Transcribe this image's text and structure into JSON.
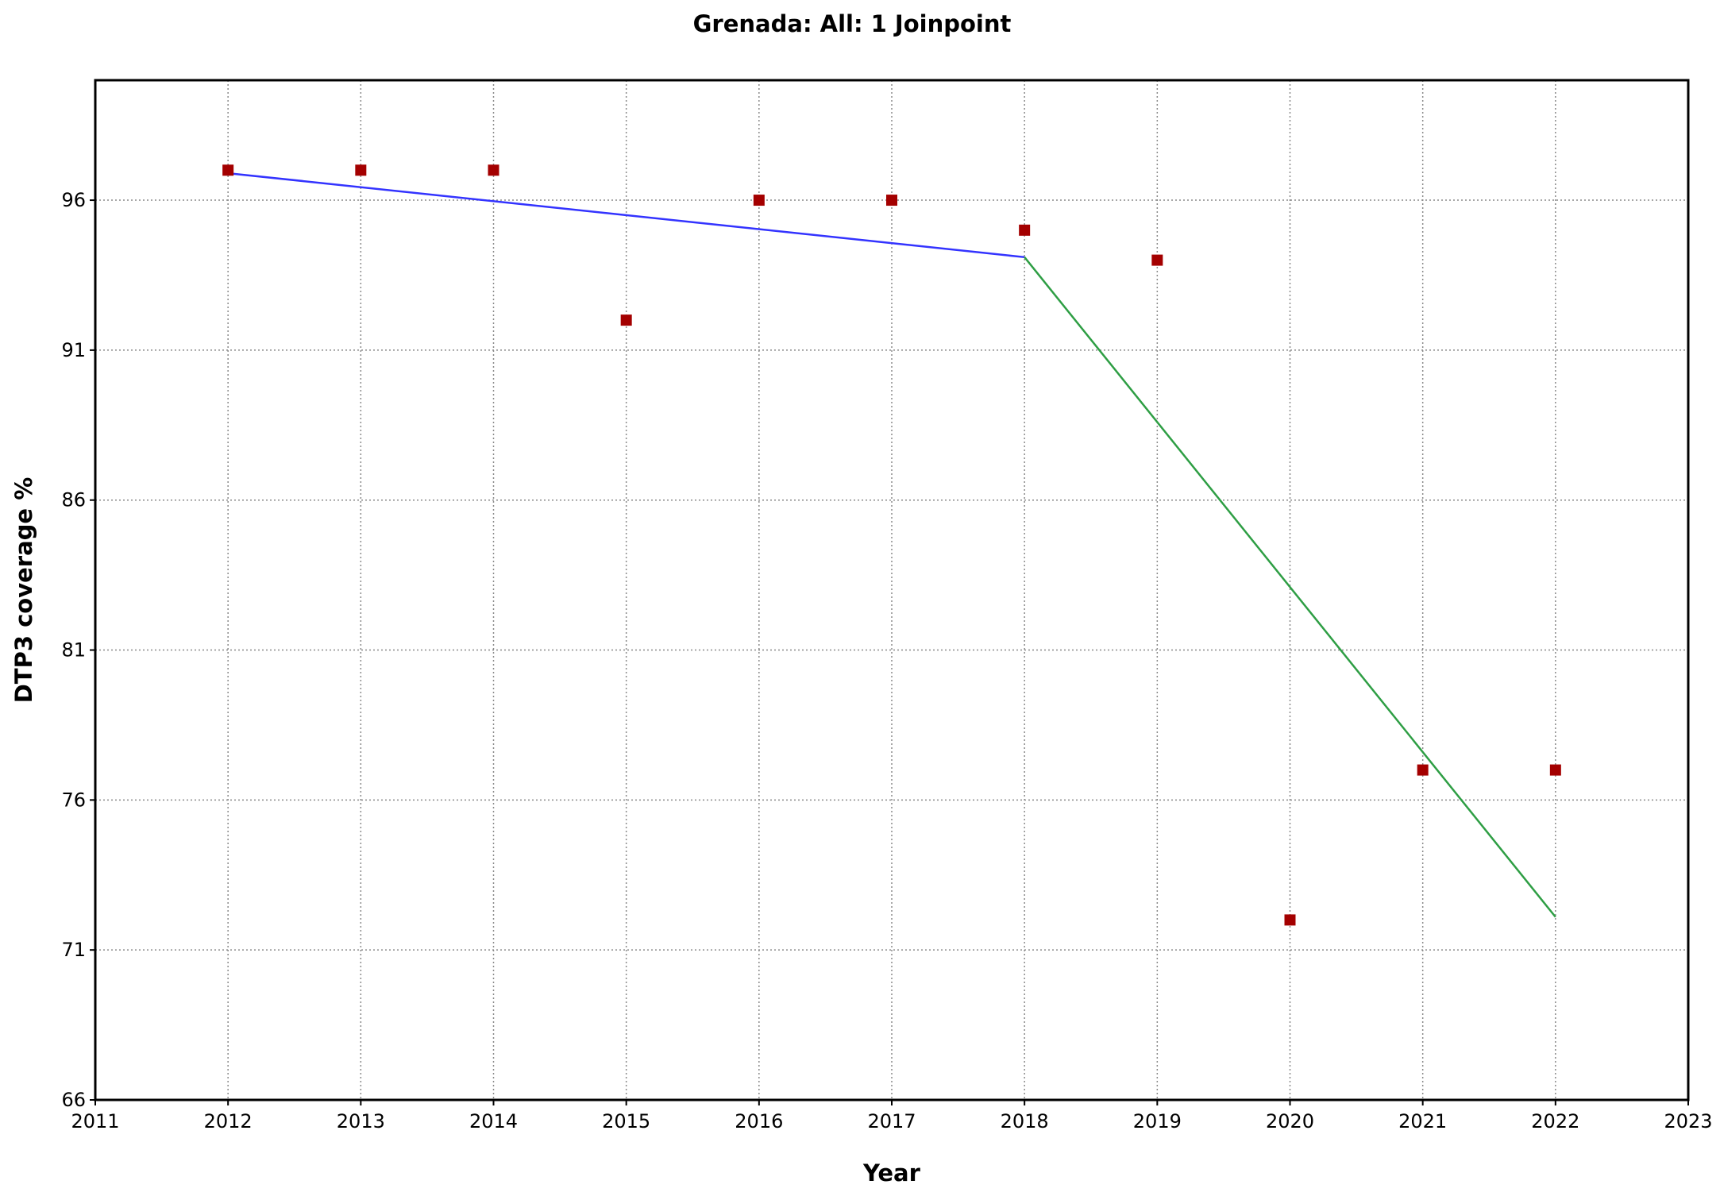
{
  "chart_data": {
    "type": "scatter",
    "title": "Grenada: All: 1 Joinpoint",
    "xlabel": "Year",
    "ylabel": "DTP3 coverage %",
    "xlim": [
      2011,
      2023
    ],
    "ylim": [
      66,
      100
    ],
    "xticks": [
      2011,
      2012,
      2013,
      2014,
      2015,
      2016,
      2017,
      2018,
      2019,
      2020,
      2021,
      2022,
      2023
    ],
    "yticks": [
      66,
      71,
      76,
      81,
      86,
      91,
      96
    ],
    "grid": true,
    "legend": "none",
    "observed": {
      "x": [
        2012,
        2013,
        2014,
        2015,
        2016,
        2017,
        2018,
        2019,
        2020,
        2021,
        2022
      ],
      "y": [
        97,
        97,
        97,
        92,
        96,
        96,
        95,
        94,
        72,
        77,
        77
      ],
      "color": "#a40000"
    },
    "segments": [
      {
        "x": [
          2012,
          2018
        ],
        "y": [
          96.9,
          94.1
        ],
        "color": "#3333ff"
      },
      {
        "x": [
          2018,
          2022
        ],
        "y": [
          94.1,
          72.1
        ],
        "color": "#2e9e44"
      }
    ]
  }
}
